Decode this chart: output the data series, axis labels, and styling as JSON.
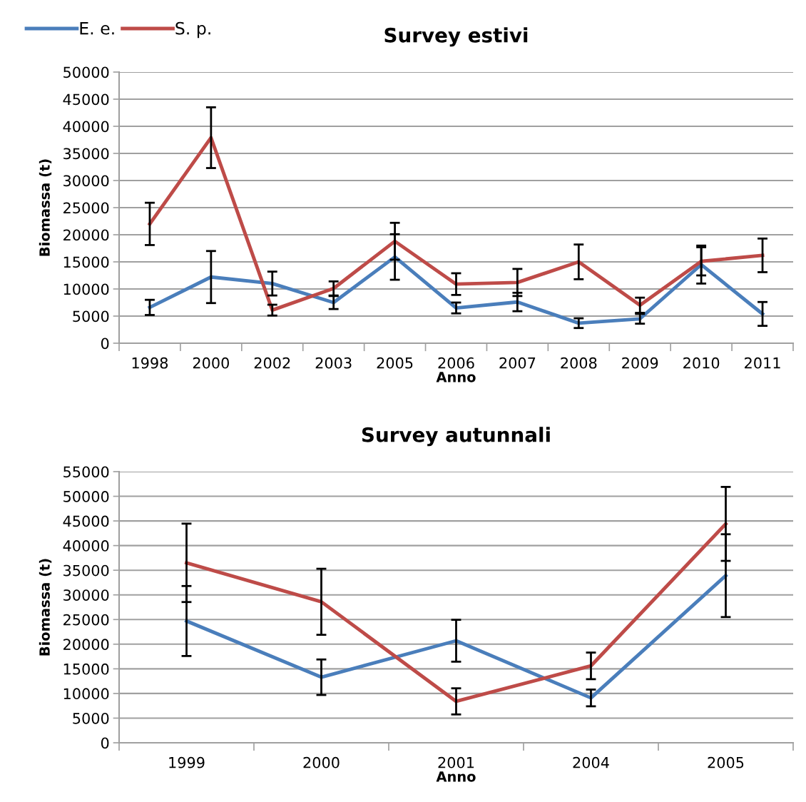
{
  "chart_data": [
    {
      "type": "line",
      "title": "Survey estivi",
      "xlabel": "Anno",
      "ylabel": "Biomassa (t)",
      "categories": [
        "1998",
        "2000",
        "2002",
        "2003",
        "2005",
        "2006",
        "2007",
        "2008",
        "2009",
        "2010",
        "2011"
      ],
      "ylim": [
        0,
        50000
      ],
      "yticks": [
        0,
        5000,
        10000,
        15000,
        20000,
        25000,
        30000,
        35000,
        40000,
        45000,
        50000
      ],
      "grid": "y",
      "legend": "top left",
      "marker": "none",
      "line_style": "solid",
      "series": [
        {
          "name": "E. e.",
          "color": "#4a7ebb",
          "values": [
            6600,
            12200,
            11000,
            7500,
            15900,
            6500,
            7600,
            3700,
            4500,
            14500,
            5400
          ],
          "errors": [
            1400,
            4800,
            2200,
            1200,
            4200,
            1000,
            1700,
            900,
            900,
            3500,
            2200
          ]
        },
        {
          "name": "S. p.",
          "color": "#be4b48",
          "values": [
            22000,
            37900,
            6100,
            10100,
            18800,
            10900,
            11200,
            15000,
            7000,
            15100,
            16200
          ],
          "errors": [
            3900,
            5600,
            1000,
            1300,
            3400,
            2000,
            2500,
            3200,
            1400,
            2600,
            3100
          ]
        }
      ]
    },
    {
      "type": "line",
      "title": "Survey autunnali",
      "xlabel": "Anno",
      "ylabel": "Biomassa (t)",
      "categories": [
        "1999",
        "2000",
        "2001",
        "2004",
        "2005"
      ],
      "ylim": [
        0,
        55000
      ],
      "yticks": [
        0,
        5000,
        10000,
        15000,
        20000,
        25000,
        30000,
        35000,
        40000,
        45000,
        50000,
        55000
      ],
      "grid": "y",
      "marker": "none",
      "line_style": "solid",
      "series": [
        {
          "color": "#4a7ebb",
          "values": [
            24700,
            13300,
            20700,
            9100,
            33900
          ],
          "errors": [
            7100,
            3600,
            4250,
            1700,
            8400
          ]
        },
        {
          "color": "#be4b48",
          "values": [
            36500,
            28600,
            8400,
            15600,
            44400
          ],
          "errors": [
            7950,
            6700,
            2650,
            2700,
            7500
          ]
        }
      ]
    }
  ]
}
